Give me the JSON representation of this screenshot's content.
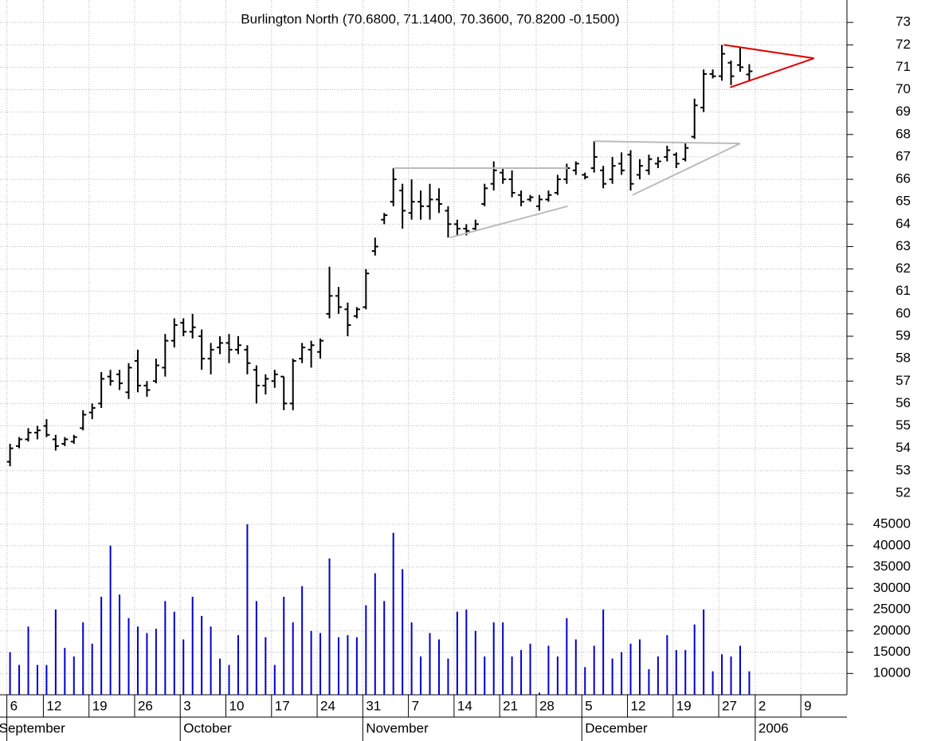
{
  "chart_data": {
    "type": "ohlc",
    "title": "Burlington North (70.6800, 71.1400, 70.3600, 70.8200 -0.1500)",
    "xlim": [
      -1.1,
      91.7
    ],
    "xticks": [
      {
        "value": 0,
        "label": "6"
      },
      {
        "value": 4,
        "label": "12"
      },
      {
        "value": 9,
        "label": "19"
      },
      {
        "value": 14,
        "label": "26"
      },
      {
        "value": 19,
        "label": "3"
      },
      {
        "value": 24,
        "label": "10"
      },
      {
        "value": 29,
        "label": "17"
      },
      {
        "value": 34,
        "label": "24"
      },
      {
        "value": 39,
        "label": "31"
      },
      {
        "value": 44,
        "label": "7"
      },
      {
        "value": 49,
        "label": "14"
      },
      {
        "value": 54,
        "label": "21"
      },
      {
        "value": 58,
        "label": "28"
      },
      {
        "value": 63,
        "label": "5"
      },
      {
        "value": 68,
        "label": "12"
      },
      {
        "value": 73,
        "label": "19"
      },
      {
        "value": 78,
        "label": "27"
      },
      {
        "value": 82,
        "label": "2"
      },
      {
        "value": 87,
        "label": "9"
      }
    ],
    "month_ticks": [
      {
        "value": 0,
        "label": "September"
      },
      {
        "value": 19,
        "label": "October"
      },
      {
        "value": 39,
        "label": "November"
      },
      {
        "value": 63,
        "label": "December"
      },
      {
        "value": 82,
        "label": "2006"
      }
    ],
    "ylim": [
      51.5,
      74
    ],
    "yticks": [
      52,
      53,
      54,
      55,
      56,
      57,
      58,
      59,
      60,
      61,
      62,
      63,
      64,
      65,
      66,
      67,
      68,
      69,
      70,
      71,
      72,
      73
    ],
    "y2lim": [
      5000,
      48000
    ],
    "y2ticks": [
      10000,
      15000,
      20000,
      25000,
      30000,
      35000,
      40000,
      45000
    ],
    "grid": true,
    "x": [
      0,
      1,
      2,
      3,
      4,
      5,
      6,
      7,
      8,
      9,
      10,
      11,
      12,
      13,
      14,
      15,
      16,
      17,
      18,
      19,
      20,
      21,
      22,
      23,
      24,
      25,
      26,
      27,
      28,
      29,
      30,
      31,
      32,
      33,
      34,
      35,
      36,
      37,
      38,
      39,
      40,
      41,
      42,
      43,
      44,
      45,
      46,
      47,
      48,
      49,
      50,
      51,
      52,
      53,
      54,
      55,
      56,
      57,
      58,
      59,
      60,
      61,
      62,
      63,
      64,
      65,
      66,
      67,
      68,
      69,
      70,
      71,
      72,
      73,
      74,
      75,
      76,
      77,
      78,
      79,
      80,
      81
    ],
    "color": "#000000",
    "open": [
      53.4,
      54.1,
      54.4,
      54.7,
      55.0,
      54.4,
      54.2,
      54.3,
      54.9,
      55.6,
      56.0,
      57.2,
      57.3,
      56.5,
      57.9,
      56.8,
      57.0,
      57.6,
      58.8,
      59.6,
      59.2,
      59.0,
      58.0,
      58.5,
      58.7,
      58.4,
      58.4,
      57.5,
      56.8,
      57.0,
      57.2,
      56.0,
      58.0,
      58.4,
      58.3,
      60.0,
      60.8,
      60.2,
      59.9,
      60.3,
      62.8,
      64.2,
      65.0,
      65.5,
      64.5,
      65.0,
      64.8,
      65.1,
      64.6,
      64.0,
      63.8,
      63.8,
      64.9,
      65.8,
      66.3,
      66.0,
      65.3,
      65.1,
      64.8,
      65.1,
      65.4,
      66.0,
      66.4,
      66.2,
      66.5,
      66.4,
      66.0,
      66.7,
      67.1,
      66.2,
      66.4,
      66.7,
      67.0,
      67.1,
      66.9,
      67.9,
      69.2,
      70.7,
      70.6,
      71.2,
      71.1,
      70.68
    ],
    "high": [
      54.2,
      54.5,
      54.9,
      55.0,
      55.3,
      54.6,
      54.5,
      54.6,
      55.7,
      56.0,
      57.4,
      57.5,
      57.5,
      57.8,
      58.4,
      57.0,
      58.0,
      59.1,
      59.8,
      59.8,
      60.0,
      59.3,
      58.7,
      59.0,
      59.1,
      59.0,
      58.6,
      57.7,
      57.3,
      57.5,
      57.2,
      58.0,
      58.7,
      58.8,
      58.9,
      62.1,
      61.2,
      60.5,
      60.3,
      62.0,
      63.4,
      64.5,
      66.5,
      65.8,
      66.0,
      65.5,
      65.8,
      65.6,
      64.8,
      64.2,
      64.0,
      64.2,
      65.8,
      66.8,
      66.5,
      66.4,
      65.5,
      65.3,
      65.3,
      65.5,
      66.2,
      66.7,
      66.8,
      66.3,
      67.7,
      66.6,
      67.0,
      67.2,
      67.3,
      66.9,
      67.1,
      67.0,
      67.5,
      67.2,
      67.6,
      69.6,
      70.9,
      70.9,
      72.0,
      71.3,
      71.9,
      71.14
    ],
    "low": [
      53.2,
      54.0,
      54.3,
      54.4,
      54.5,
      53.9,
      54.1,
      54.2,
      54.8,
      55.3,
      55.8,
      56.8,
      56.6,
      56.2,
      56.5,
      56.3,
      56.9,
      57.2,
      58.5,
      59.0,
      58.9,
      57.5,
      57.3,
      58.2,
      57.8,
      58.2,
      57.3,
      56.0,
      56.4,
      56.7,
      55.7,
      55.7,
      57.8,
      57.6,
      58.0,
      59.8,
      60.0,
      59.0,
      59.8,
      60.2,
      62.6,
      64.0,
      64.8,
      63.8,
      64.2,
      64.2,
      64.2,
      64.5,
      63.4,
      63.5,
      63.5,
      63.7,
      64.8,
      65.5,
      65.8,
      65.2,
      64.8,
      65.0,
      64.6,
      65.0,
      65.3,
      65.8,
      66.2,
      66.0,
      66.3,
      65.6,
      65.8,
      66.2,
      65.5,
      66.0,
      66.2,
      66.5,
      66.8,
      66.5,
      66.8,
      67.8,
      69.0,
      70.5,
      70.4,
      70.2,
      70.8,
      70.36
    ],
    "close": [
      54.0,
      54.4,
      54.7,
      54.8,
      54.6,
      54.1,
      54.4,
      54.5,
      55.5,
      55.8,
      57.1,
      57.0,
      56.9,
      57.6,
      56.8,
      56.6,
      57.7,
      58.8,
      59.5,
      59.2,
      59.4,
      58.0,
      58.4,
      58.7,
      58.4,
      58.6,
      57.8,
      56.8,
      57.1,
      57.3,
      56.0,
      57.9,
      58.5,
      58.6,
      58.8,
      60.8,
      60.3,
      59.5,
      60.2,
      61.8,
      63.0,
      64.4,
      66.0,
      64.6,
      65.0,
      64.8,
      65.1,
      64.9,
      64.0,
      63.8,
      63.7,
      64.0,
      65.6,
      66.4,
      66.0,
      65.4,
      65.0,
      65.2,
      65.1,
      65.3,
      66.0,
      66.5,
      66.7,
      66.1,
      67.0,
      65.8,
      66.6,
      66.4,
      65.8,
      66.6,
      66.9,
      66.8,
      67.3,
      66.7,
      67.4,
      69.3,
      70.7,
      70.6,
      71.6,
      70.6,
      71.0,
      70.82
    ],
    "volume": {
      "color": "#0000cc",
      "axis": "y2",
      "values": [
        15000,
        12000,
        21000,
        12000,
        12000,
        25000,
        16000,
        14000,
        22000,
        17000,
        28000,
        40000,
        28500,
        23000,
        21000,
        19500,
        20500,
        27000,
        24500,
        18000,
        28000,
        23500,
        21000,
        13500,
        12000,
        19000,
        45000,
        27000,
        18500,
        12000,
        28000,
        22000,
        30500,
        20000,
        19500,
        37000,
        18500,
        19000,
        18500,
        26000,
        33500,
        27000,
        43000,
        34500,
        22000,
        14000,
        19500,
        18000,
        13500,
        24500,
        25000,
        20000,
        14000,
        22000,
        22000,
        14000,
        15500,
        17000,
        5500,
        16500,
        14000,
        23000,
        18000,
        11500,
        16500,
        25000,
        13500,
        15000,
        17000,
        18000,
        11000,
        14000,
        19000,
        15500,
        15500,
        21500,
        25000,
        10500,
        14500,
        14000,
        16500,
        10500
      ]
    },
    "trendlines": [
      {
        "color": "#bbbbbb",
        "x": [
          42,
          61.1
        ],
        "y": [
          66.5,
          66.5
        ]
      },
      {
        "color": "#bbbbbb",
        "x": [
          48.2,
          61.1
        ],
        "y": [
          63.4,
          64.8
        ]
      },
      {
        "color": "#bbbbbb",
        "x": [
          64,
          80
        ],
        "y": [
          67.7,
          67.6
        ]
      },
      {
        "color": "#bbbbbb",
        "x": [
          68.2,
          80
        ],
        "y": [
          65.3,
          67.6
        ]
      },
      {
        "color": "#e00000",
        "x": [
          78.2,
          88.1
        ],
        "y": [
          72.0,
          71.4
        ]
      },
      {
        "color": "#e00000",
        "x": [
          78.9,
          88.1
        ],
        "y": [
          70.1,
          71.4
        ]
      }
    ]
  }
}
